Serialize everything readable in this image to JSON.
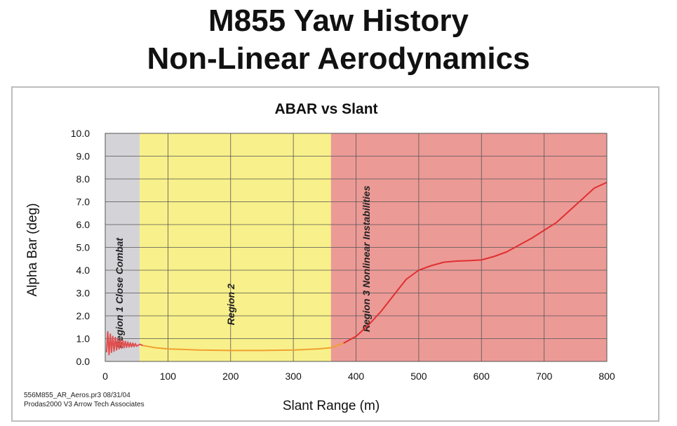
{
  "slide": {
    "title_line1": "M855 Yaw History",
    "title_line2": "Non-Linear Aerodynamics"
  },
  "footnotes": {
    "line1": "556M855_AR_Aeros.pr3   08/31/04",
    "line2": "Prodas2000 V3 Arrow Tech Associates"
  },
  "chart_data": {
    "type": "line",
    "title": "ABAR vs Slant",
    "xlabel": "Slant Range (m)",
    "ylabel": "Alpha Bar (deg)",
    "xlim": [
      0,
      800
    ],
    "ylim": [
      0,
      10
    ],
    "x_ticks": [
      0,
      100,
      200,
      300,
      400,
      500,
      600,
      700,
      800
    ],
    "y_ticks": [
      0.0,
      1.0,
      2.0,
      3.0,
      4.0,
      5.0,
      6.0,
      7.0,
      8.0,
      9.0,
      10.0
    ],
    "grid": true,
    "colors": {
      "line_region1": "#e05050",
      "line_region2": "#f0a030",
      "line_region3": "#e03030",
      "grid": "#555555"
    },
    "regions": [
      {
        "label": "Region 1 Close Combat",
        "x_start": 0,
        "x_end": 55,
        "color": "#d3d3d8"
      },
      {
        "label": "Region 2",
        "x_start": 55,
        "x_end": 360,
        "color": "#f8f08a"
      },
      {
        "label": "Region 3 Nonlinear Instabilities",
        "x_start": 360,
        "x_end": 800,
        "color": "#ec9a96"
      }
    ],
    "series": [
      {
        "x": [
          2,
          4,
          6,
          8,
          10,
          12,
          14,
          16,
          18,
          20,
          22,
          24,
          26,
          28,
          30,
          32,
          34,
          36,
          38,
          40,
          42,
          44,
          46,
          48,
          50,
          55,
          60,
          80,
          100,
          150,
          200,
          250,
          300,
          340,
          360,
          380,
          400,
          420,
          440,
          460,
          480,
          500,
          520,
          540,
          560,
          580,
          600,
          620,
          640,
          660,
          680,
          700,
          720,
          740,
          760,
          780,
          800
        ],
        "y": [
          0.4,
          1.3,
          0.3,
          1.2,
          0.4,
          1.1,
          0.45,
          1.05,
          0.5,
          1.0,
          0.55,
          0.95,
          0.58,
          0.92,
          0.6,
          0.88,
          0.62,
          0.85,
          0.63,
          0.82,
          0.64,
          0.8,
          0.65,
          0.78,
          0.67,
          0.75,
          0.7,
          0.6,
          0.55,
          0.5,
          0.48,
          0.48,
          0.5,
          0.55,
          0.6,
          0.8,
          1.1,
          1.6,
          2.2,
          2.9,
          3.6,
          4.0,
          4.2,
          4.35,
          4.4,
          4.42,
          4.45,
          4.6,
          4.8,
          5.1,
          5.4,
          5.75,
          6.1,
          6.6,
          7.1,
          7.6,
          7.85
        ]
      }
    ]
  }
}
